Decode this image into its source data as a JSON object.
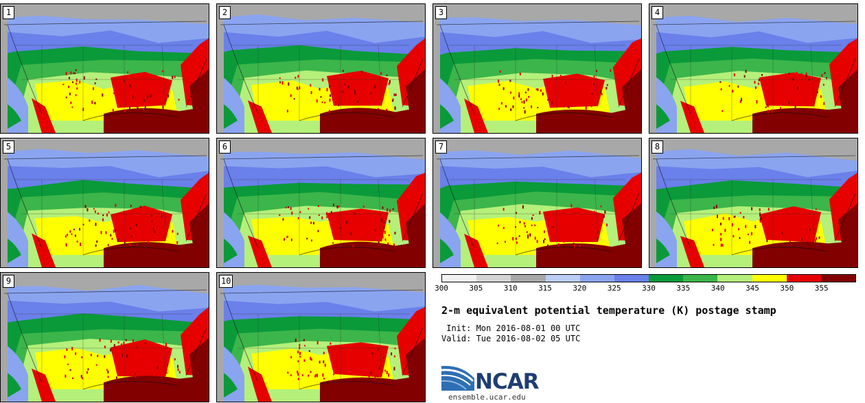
{
  "panels": [
    {
      "label": "1"
    },
    {
      "label": "2"
    },
    {
      "label": "3"
    },
    {
      "label": "4"
    },
    {
      "label": "5"
    },
    {
      "label": "6"
    },
    {
      "label": "7"
    },
    {
      "label": "8"
    },
    {
      "label": "9"
    },
    {
      "label": "10"
    }
  ],
  "colorbar": {
    "ticks": [
      "300",
      "305",
      "310",
      "315",
      "320",
      "325",
      "330",
      "335",
      "340",
      "345",
      "350",
      "355"
    ],
    "colors": [
      "#f2f2f2",
      "#d4d4d4",
      "#a8a8a8",
      "#bccdf6",
      "#8aa4f0",
      "#6a80ea",
      "#0a9a3a",
      "#3cb54a",
      "#b4f07a",
      "#ffff00",
      "#e60000",
      "#820000"
    ]
  },
  "title": "2-m equivalent potential temperature (K) postage stamp",
  "init_text": " Init: Mon 2016-08-01 00 UTC",
  "valid_text": "Valid: Tue 2016-08-02 05 UTC",
  "logo": {
    "text": "NCAR",
    "site": "ensemble.ucar.edu"
  }
}
